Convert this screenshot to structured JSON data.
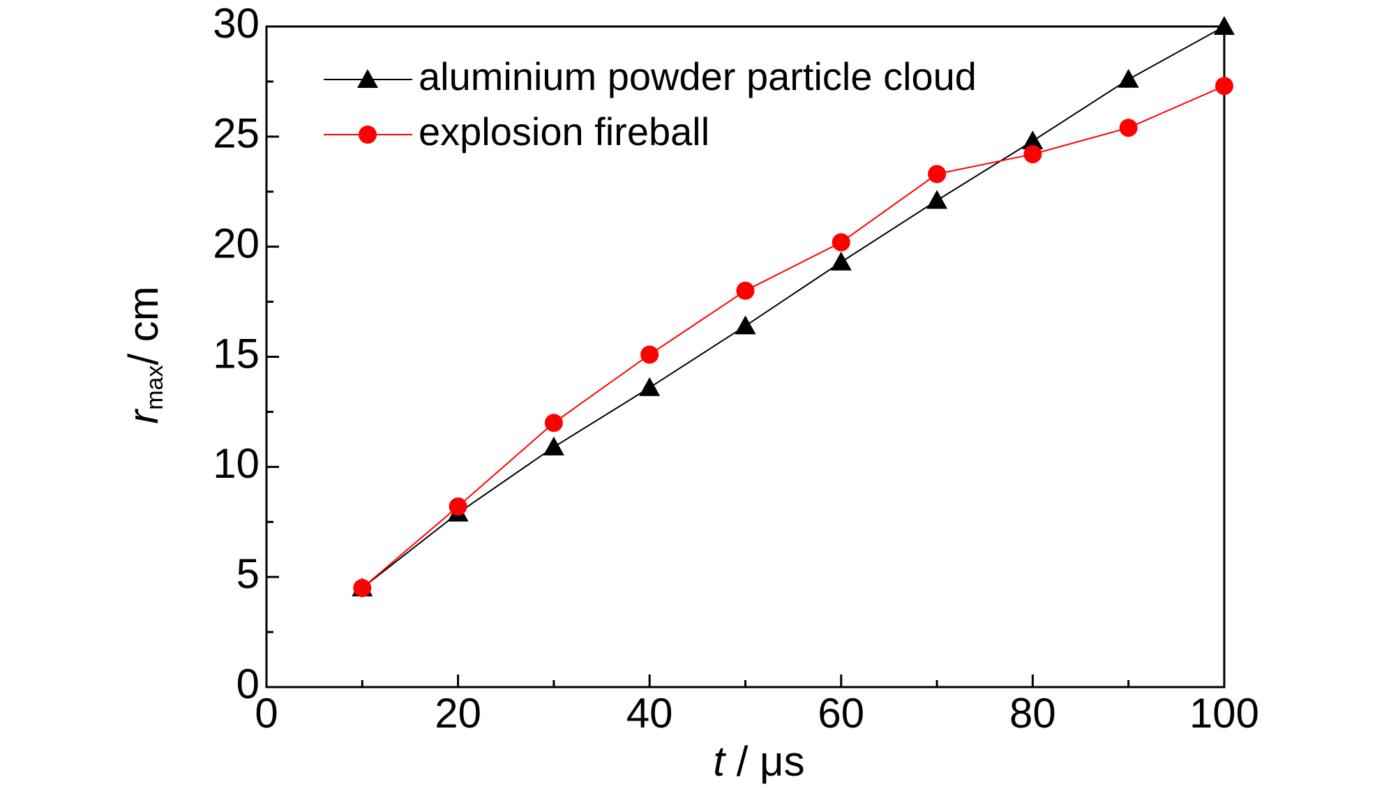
{
  "chart_data": {
    "type": "line",
    "x_label_symbol": "t",
    "x_label_unit": "/ μs",
    "y_label_symbol": "r",
    "y_label_subscript": "max",
    "y_label_unit": "/ cm",
    "x": [
      10,
      20,
      30,
      40,
      50,
      60,
      70,
      80,
      90,
      100
    ],
    "series": [
      {
        "name": "aluminium powder particle cloud",
        "color": "#000000",
        "marker": "triangle",
        "values": [
          4.5,
          7.9,
          10.9,
          13.6,
          16.4,
          19.3,
          22.1,
          24.8,
          27.6,
          30.0
        ]
      },
      {
        "name": "explosion fireball",
        "color": "#ff0000",
        "marker": "circle",
        "values": [
          4.5,
          8.2,
          12.0,
          15.1,
          18.0,
          20.2,
          23.3,
          24.2,
          25.4,
          27.3
        ]
      }
    ],
    "xlim": [
      0,
      100
    ],
    "xticks": [
      0,
      20,
      40,
      60,
      80,
      100
    ],
    "x_minor_ticks": [
      10,
      30,
      50,
      70,
      90
    ],
    "ylim": [
      0,
      30
    ],
    "yticks": [
      0,
      5,
      10,
      15,
      20,
      25,
      30
    ],
    "y_minor_ticks": [
      2.5,
      7.5,
      12.5,
      17.5,
      22.5,
      27.5
    ],
    "legend": "upper left",
    "grid": false
  }
}
